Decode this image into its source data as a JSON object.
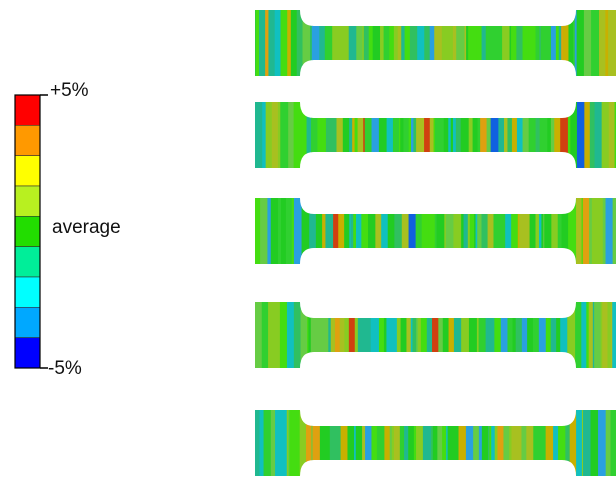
{
  "legend": {
    "top_label": "+5%",
    "middle_label": "average",
    "bottom_label": "-5%",
    "colors": [
      "#ff0000",
      "#ff9900",
      "#ffff00",
      "#b8f020",
      "#22dd00",
      "#00ee99",
      "#00ffff",
      "#00a8ff",
      "#0000ff"
    ]
  }
}
